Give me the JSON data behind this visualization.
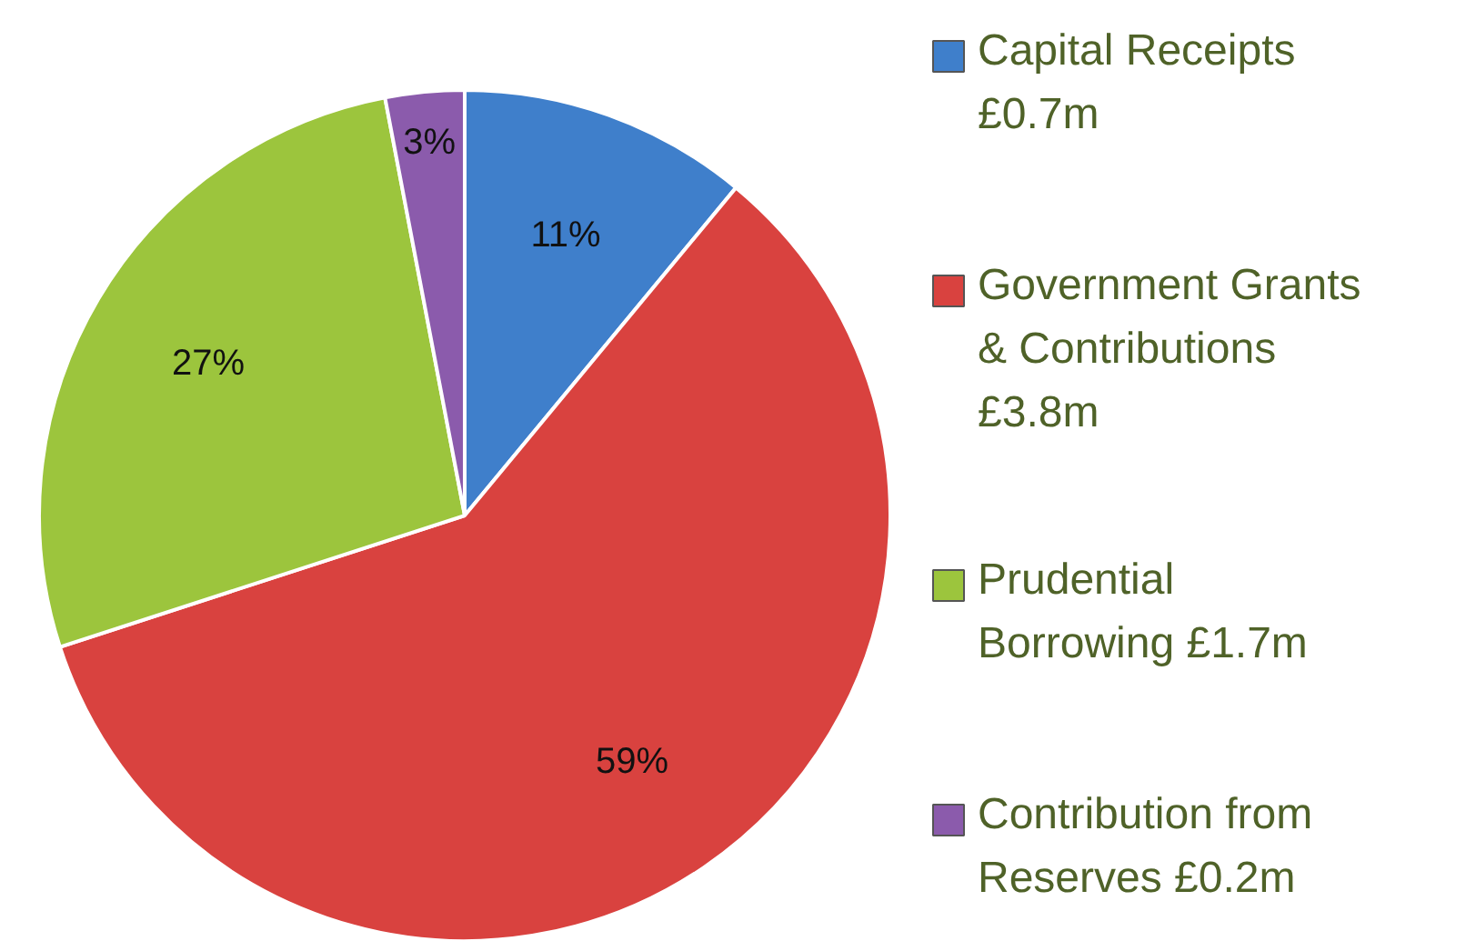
{
  "chart_data": {
    "type": "pie",
    "categories": [
      "Capital Receipts £0.7m",
      "Government Grants & Contributions £3.8m",
      "Prudential Borrowing £1.7m",
      "Contribution from Reserves £0.2m"
    ],
    "values": [
      11,
      59,
      27,
      3
    ],
    "colors": [
      "#3f7fcb",
      "#d9423f",
      "#9cc53d",
      "#8b5bac"
    ],
    "value_labels": [
      "11%",
      "59%",
      "27%",
      "3%"
    ],
    "legend": "right"
  }
}
